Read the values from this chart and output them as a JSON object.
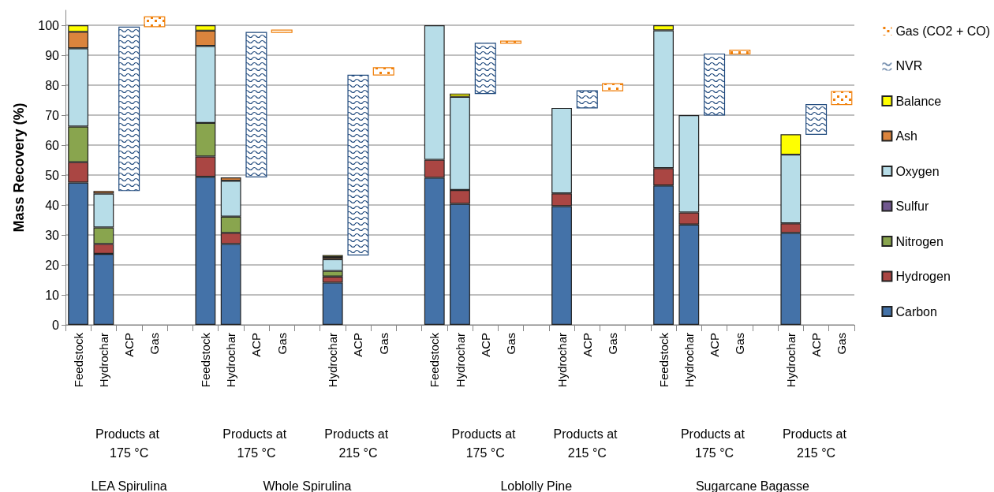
{
  "chart_data": {
    "type": "bar",
    "stacked": true,
    "ylabel": "Mass Recovery (%)",
    "categories": [
      "Feedstock",
      "Hydrochar",
      "ACP",
      "Gas",
      null,
      "Feedstock",
      "Hydrochar",
      "ACP",
      "Gas",
      null,
      "Hydrochar",
      "ACP",
      "Gas",
      null,
      "Feedstock",
      "Hydrochar",
      "ACP",
      "Gas",
      null,
      "Hydrochar",
      "ACP",
      "Gas",
      null,
      "Feedstock",
      "Hydrochar",
      "ACP",
      "Gas",
      null,
      "Hydrochar",
      "ACP",
      "Gas"
    ],
    "series": [
      {
        "name": "Carbon",
        "color": "#4472a8",
        "values": [
          47.5,
          23.7,
          null,
          null,
          null,
          49.4,
          27.0,
          null,
          null,
          null,
          14.1,
          null,
          null,
          null,
          49.1,
          40.4,
          null,
          null,
          null,
          39.6,
          null,
          null,
          null,
          46.5,
          33.5,
          null,
          null,
          null,
          30.7,
          null,
          null
        ]
      },
      {
        "name": "Hydrogen",
        "color": "#aa4643",
        "values": [
          6.8,
          3.3,
          null,
          null,
          null,
          6.8,
          3.7,
          null,
          null,
          null,
          2.0,
          null,
          null,
          null,
          6.0,
          4.6,
          null,
          null,
          null,
          4.3,
          null,
          null,
          null,
          5.8,
          4.0,
          null,
          null,
          null,
          3.2,
          null,
          null
        ]
      },
      {
        "name": "Nitrogen",
        "color": "#89a54e",
        "values": [
          11.9,
          5.5,
          null,
          null,
          null,
          11.2,
          5.4,
          null,
          null,
          null,
          1.9,
          null,
          null,
          null,
          null,
          null,
          null,
          null,
          null,
          null,
          null,
          null,
          null,
          null,
          null,
          null,
          null,
          null,
          null,
          null,
          null
        ]
      },
      {
        "name": "Sulfur",
        "color": "#71588f",
        "values": [
          null,
          null,
          null,
          null,
          null,
          null,
          null,
          null,
          null,
          null,
          null,
          null,
          null,
          null,
          null,
          null,
          null,
          null,
          null,
          null,
          null,
          null,
          null,
          null,
          null,
          null,
          null,
          null,
          null,
          null,
          null
        ]
      },
      {
        "name": "Oxygen",
        "color": "#b7dde8",
        "values": [
          26.1,
          11.3,
          null,
          null,
          null,
          25.7,
          12.0,
          null,
          null,
          null,
          3.9,
          null,
          null,
          null,
          44.9,
          31.1,
          null,
          null,
          null,
          28.5,
          null,
          null,
          null,
          46.0,
          32.5,
          null,
          null,
          null,
          22.9,
          null,
          null
        ]
      },
      {
        "name": "Ash",
        "color": "#db843d",
        "values": [
          5.5,
          0.9,
          null,
          null,
          null,
          5.1,
          1.1,
          null,
          null,
          null,
          0.7,
          null,
          null,
          null,
          null,
          null,
          null,
          null,
          null,
          null,
          null,
          null,
          null,
          null,
          null,
          null,
          null,
          null,
          null,
          null,
          null
        ]
      },
      {
        "name": "Balance",
        "color": "#ffff00",
        "values": [
          2.2,
          null,
          null,
          null,
          null,
          1.8,
          null,
          null,
          null,
          null,
          0.7,
          null,
          null,
          null,
          null,
          1.1,
          null,
          null,
          null,
          null,
          null,
          null,
          null,
          1.7,
          null,
          null,
          null,
          null,
          6.8,
          null,
          null
        ]
      },
      {
        "name": "NVR",
        "color": "#1f497d",
        "values": [
          null,
          null,
          54.6,
          null,
          null,
          null,
          null,
          48.2,
          null,
          null,
          null,
          60.0,
          null,
          null,
          null,
          null,
          16.8,
          null,
          null,
          null,
          5.7,
          null,
          null,
          null,
          null,
          20.4,
          null,
          null,
          null,
          9.9,
          null
        ],
        "base": [
          null,
          null,
          44.8,
          null,
          null,
          null,
          null,
          49.4,
          null,
          null,
          null,
          23.3,
          null,
          null,
          null,
          null,
          77.2,
          null,
          null,
          null,
          72.4,
          null,
          null,
          null,
          null,
          70.0,
          null,
          null,
          null,
          63.6,
          null
        ]
      },
      {
        "name": "Gas (CO2 + CO)",
        "color": "#f07f09",
        "values": [
          null,
          null,
          null,
          3.3,
          null,
          null,
          null,
          null,
          0.8,
          null,
          null,
          null,
          2.4,
          null,
          null,
          null,
          null,
          0.7,
          null,
          null,
          null,
          2.4,
          null,
          null,
          null,
          null,
          1.3,
          null,
          null,
          null,
          4.4
        ],
        "base": [
          null,
          null,
          null,
          99.5,
          null,
          null,
          null,
          null,
          97.6,
          null,
          null,
          null,
          83.4,
          null,
          null,
          null,
          null,
          94.0,
          null,
          null,
          null,
          78.1,
          null,
          null,
          null,
          null,
          90.4,
          null,
          null,
          null,
          73.5
        ]
      }
    ],
    "ylim": [
      0,
      105
    ],
    "yticks": [
      0,
      10,
      20,
      30,
      40,
      50,
      60,
      70,
      80,
      90,
      100
    ],
    "grid": "y",
    "legend": "right",
    "annotations": [
      "Products at 175 °C",
      "Products at 175 °C",
      "Products at 215 °C",
      "Products at 175 °C",
      "Products at 215 °C",
      "Products at 175 °C",
      "Products at 215 °C",
      "LEA Spirulina",
      "Whole Spirulina",
      "Loblolly Pine",
      "Sugarcane Bagasse"
    ]
  }
}
